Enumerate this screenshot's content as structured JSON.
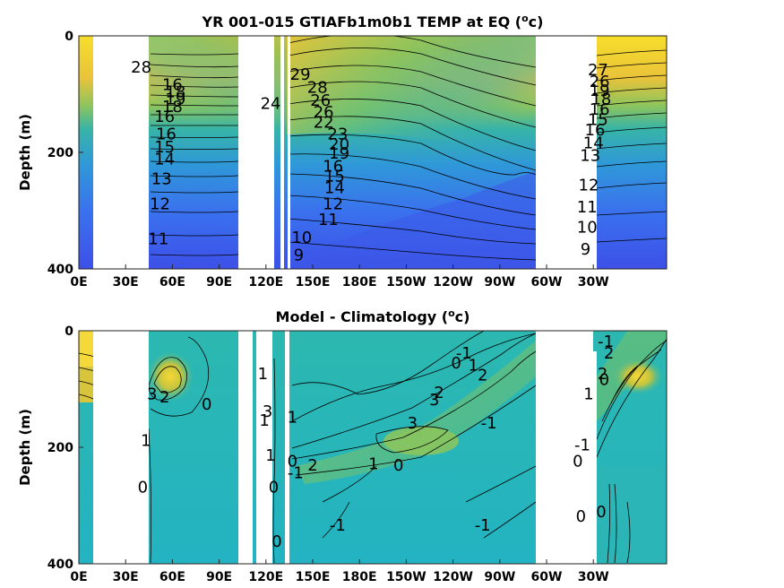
{
  "chart_data": [
    {
      "type": "heatmap",
      "title_main": "YR 001-015 GTIAFb1m0b1 TEMP at EQ (",
      "title_unit_sup": "o",
      "title_unit": "c)",
      "ylabel": "Depth (m)",
      "xlabel": "",
      "x_ticks": [
        "0E",
        "30E",
        "60E",
        "90E",
        "120E",
        "150E",
        "180E",
        "150W",
        "120W",
        "90W",
        "60W",
        "30W"
      ],
      "y_ticks": [
        "0",
        "200",
        "400"
      ],
      "ylim": [
        0,
        400
      ],
      "y_reversed": true,
      "colormap": "parula",
      "contour_labels": [
        {
          "text": "28",
          "lon": 40,
          "depth": 55
        },
        {
          "text": "16",
          "lon": 60,
          "depth": 85
        },
        {
          "text": "18",
          "lon": 62,
          "depth": 98
        },
        {
          "text": "19",
          "lon": 62,
          "depth": 110
        },
        {
          "text": "18",
          "lon": 60,
          "depth": 123
        },
        {
          "text": "16",
          "lon": 55,
          "depth": 140
        },
        {
          "text": "16",
          "lon": 56,
          "depth": 170
        },
        {
          "text": "15",
          "lon": 55,
          "depth": 192
        },
        {
          "text": "14",
          "lon": 55,
          "depth": 213
        },
        {
          "text": "13",
          "lon": 53,
          "depth": 247
        },
        {
          "text": "12",
          "lon": 52,
          "depth": 290
        },
        {
          "text": "11",
          "lon": 51,
          "depth": 350
        },
        {
          "text": "24",
          "lon": 123,
          "depth": 118
        },
        {
          "text": "29",
          "lon": 142,
          "depth": 68
        },
        {
          "text": "28",
          "lon": 153,
          "depth": 90
        },
        {
          "text": "26",
          "lon": 155,
          "depth": 112
        },
        {
          "text": "26",
          "lon": 157,
          "depth": 132
        },
        {
          "text": "22",
          "lon": 157,
          "depth": 150
        },
        {
          "text": "23",
          "lon": 166,
          "depth": 170
        },
        {
          "text": "20",
          "lon": 167,
          "depth": 188
        },
        {
          "text": "19",
          "lon": 167,
          "depth": 203
        },
        {
          "text": "16",
          "lon": 163,
          "depth": 225
        },
        {
          "text": "15",
          "lon": 164,
          "depth": 242
        },
        {
          "text": "14",
          "lon": 164,
          "depth": 262
        },
        {
          "text": "12",
          "lon": 163,
          "depth": 290
        },
        {
          "text": "11",
          "lon": 160,
          "depth": 317
        },
        {
          "text": "10",
          "lon": 143,
          "depth": 348
        },
        {
          "text": "9",
          "lon": 141,
          "depth": 378
        },
        {
          "text": "27",
          "lon": 333,
          "depth": 60
        },
        {
          "text": "26",
          "lon": 334,
          "depth": 80
        },
        {
          "text": "19",
          "lon": 334,
          "depth": 95
        },
        {
          "text": "18",
          "lon": 335,
          "depth": 110
        },
        {
          "text": "16",
          "lon": 334,
          "depth": 128
        },
        {
          "text": "15",
          "lon": 333,
          "depth": 145
        },
        {
          "text": "16",
          "lon": 331,
          "depth": 163
        },
        {
          "text": "14",
          "lon": 330,
          "depth": 185
        },
        {
          "text": "13",
          "lon": 328,
          "depth": 207
        },
        {
          "text": "12",
          "lon": 327,
          "depth": 258
        },
        {
          "text": "11",
          "lon": 326,
          "depth": 295
        },
        {
          "text": "10",
          "lon": 326,
          "depth": 330
        },
        {
          "text": "9",
          "lon": 325,
          "depth": 368
        }
      ]
    },
    {
      "type": "heatmap",
      "title_main": "Model - Climatology (",
      "title_unit_sup": "o",
      "title_unit": "c)",
      "ylabel": "Depth (m)",
      "xlabel": "",
      "x_ticks": [
        "0E",
        "30E",
        "60E",
        "90E",
        "120E",
        "150E",
        "180E",
        "150W",
        "120W",
        "90W",
        "60W",
        "30W"
      ],
      "y_ticks": [
        "0",
        "200",
        "400"
      ],
      "ylim": [
        0,
        400
      ],
      "y_reversed": true,
      "colormap": "parula",
      "contour_labels": [
        {
          "text": "3",
          "lon": 47,
          "depth": 110
        },
        {
          "text": "2",
          "lon": 55,
          "depth": 115
        },
        {
          "text": "0",
          "lon": 82,
          "depth": 128
        },
        {
          "text": "1",
          "lon": 43,
          "depth": 190
        },
        {
          "text": "0",
          "lon": 41,
          "depth": 270
        },
        {
          "text": "1",
          "lon": 118,
          "depth": 75
        },
        {
          "text": "1",
          "lon": 119,
          "depth": 155
        },
        {
          "text": "3",
          "lon": 121,
          "depth": 140
        },
        {
          "text": "1",
          "lon": 137,
          "depth": 150
        },
        {
          "text": "1",
          "lon": 123,
          "depth": 215
        },
        {
          "text": "0",
          "lon": 125,
          "depth": 270
        },
        {
          "text": "0",
          "lon": 127,
          "depth": 363
        },
        {
          "text": "0",
          "lon": 137,
          "depth": 225
        },
        {
          "text": "-1",
          "lon": 139,
          "depth": 245
        },
        {
          "text": "2",
          "lon": 150,
          "depth": 232
        },
        {
          "text": "1",
          "lon": 189,
          "depth": 230
        },
        {
          "text": "0",
          "lon": 205,
          "depth": 232
        },
        {
          "text": "3",
          "lon": 214,
          "depth": 160
        },
        {
          "text": "3",
          "lon": 228,
          "depth": 120
        },
        {
          "text": "2",
          "lon": 231,
          "depth": 108
        },
        {
          "text": "0",
          "lon": 242,
          "depth": 57
        },
        {
          "text": "-1",
          "lon": 247,
          "depth": 40
        },
        {
          "text": "1",
          "lon": 253,
          "depth": 61
        },
        {
          "text": "2",
          "lon": 259,
          "depth": 78
        },
        {
          "text": "-1",
          "lon": 263,
          "depth": 160
        },
        {
          "text": "-1",
          "lon": 166,
          "depth": 335
        },
        {
          "text": "-1",
          "lon": 259,
          "depth": 335
        },
        {
          "text": "-1",
          "lon": 338,
          "depth": 20
        },
        {
          "text": "2",
          "lon": 340,
          "depth": 40
        },
        {
          "text": "2",
          "lon": 336,
          "depth": 75
        },
        {
          "text": "0",
          "lon": 337,
          "depth": 85
        },
        {
          "text": "1",
          "lon": 327,
          "depth": 110
        },
        {
          "text": "0",
          "lon": 320,
          "depth": 225
        },
        {
          "text": "-1",
          "lon": 323,
          "depth": 198
        },
        {
          "text": "0",
          "lon": 322,
          "depth": 320
        },
        {
          "text": "0",
          "lon": 335,
          "depth": 312
        }
      ]
    }
  ]
}
